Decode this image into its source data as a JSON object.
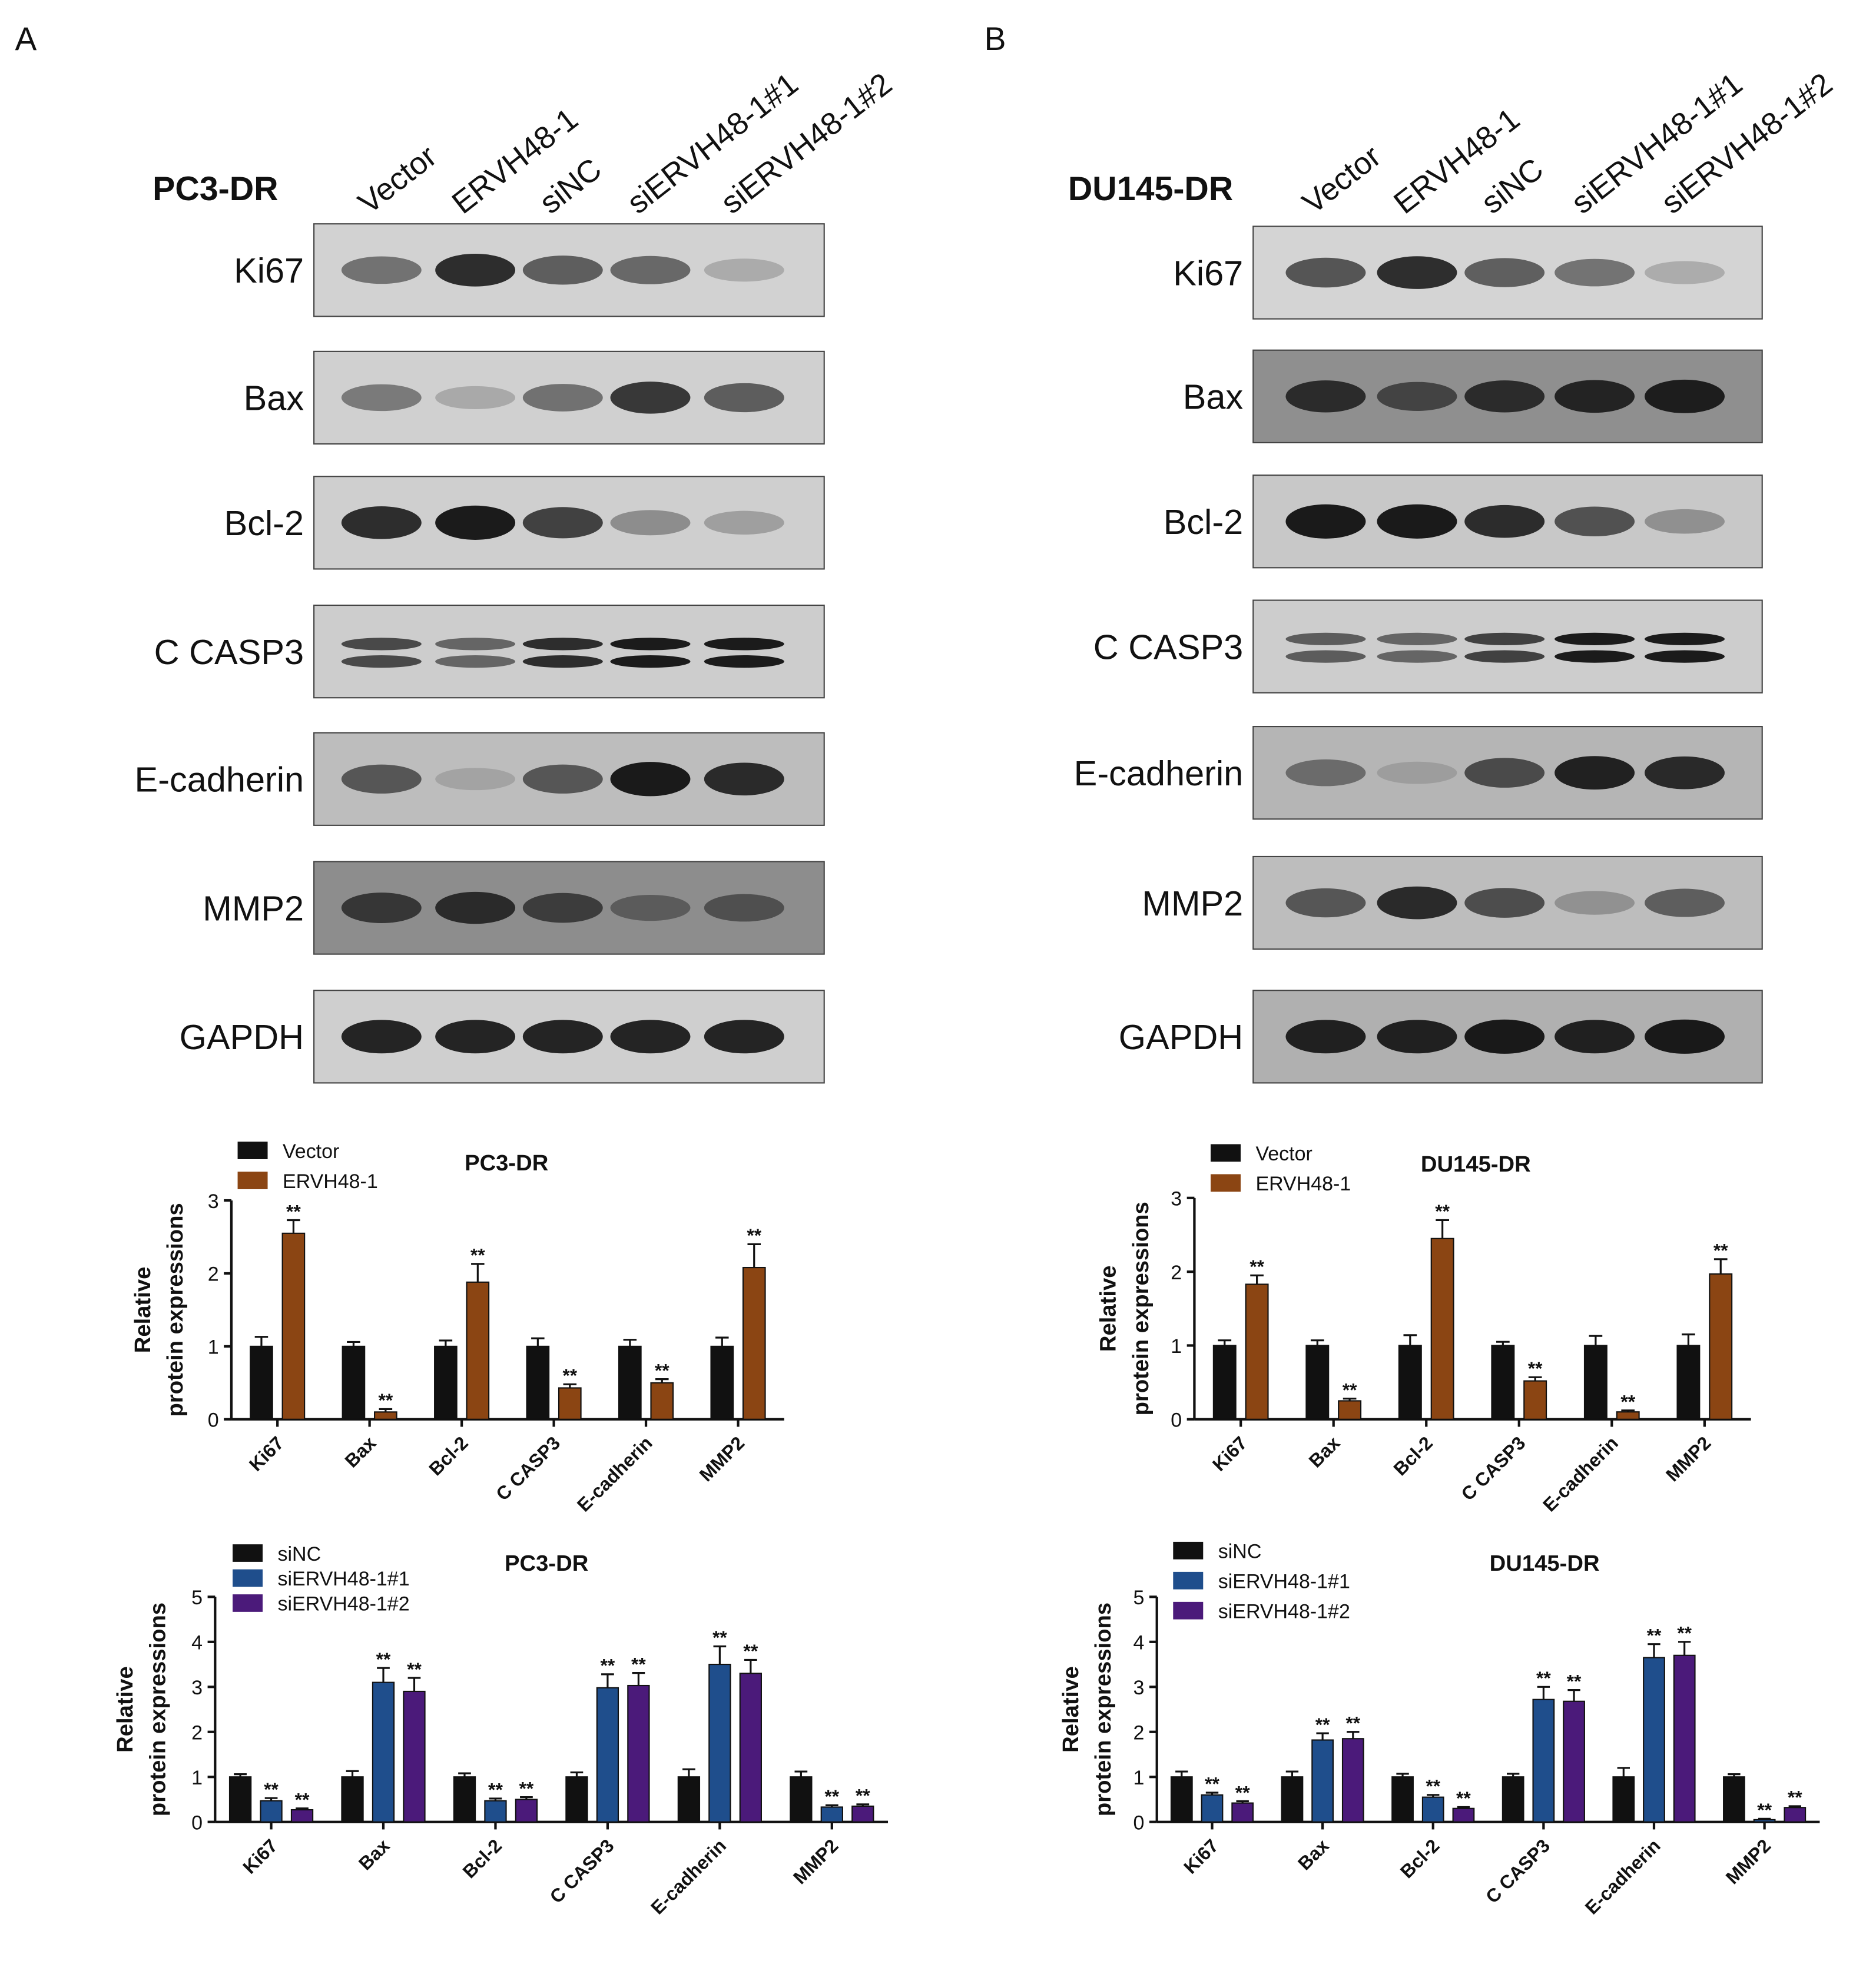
{
  "panels": [
    {
      "letter": "A",
      "cell_line": "PC3-DR",
      "lanes": [
        "Vector",
        "ERVH48-1",
        "siNC",
        "siERVH48-1#1",
        "siERVH48-1#2"
      ],
      "proteins": [
        "Ki67",
        "Bax",
        "Bcl-2",
        "C CASP3",
        "E-cadherin",
        "MMP2",
        "GAPDH"
      ]
    },
    {
      "letter": "B",
      "cell_line": "DU145-DR",
      "lanes": [
        "Vector",
        "ERVH48-1",
        "siNC",
        "siERVH48-1#1",
        "siERVH48-1#2"
      ],
      "proteins": [
        "Ki67",
        "Bax",
        "Bcl-2",
        "C CASP3",
        "E-cadherin",
        "MMP2",
        "GAPDH"
      ]
    }
  ],
  "chart_data": [
    {
      "type": "bar",
      "title": "PC3-DR",
      "y_label": [
        "Relative",
        "protein expressions"
      ],
      "categories": [
        "Ki67",
        "Bax",
        "Bcl-2",
        "C CASP3",
        "E-cadherin",
        "MMP2"
      ],
      "series": [
        {
          "name": "Vector",
          "color": "#111111",
          "values": [
            1,
            1,
            1,
            1,
            1,
            1
          ],
          "errors": [
            0.13,
            0.06,
            0.08,
            0.11,
            0.09,
            0.12
          ]
        },
        {
          "name": "ERVH48-1",
          "color": "#8b4513",
          "values": [
            2.55,
            0.1,
            1.88,
            0.43,
            0.5,
            2.08
          ],
          "errors": [
            0.18,
            0.04,
            0.25,
            0.05,
            0.05,
            0.32
          ],
          "significance": [
            "**",
            "**",
            "**",
            "**",
            "**",
            "**"
          ]
        }
      ],
      "ylim": [
        0,
        3
      ],
      "yticks": [
        0,
        1,
        2,
        3
      ]
    },
    {
      "type": "bar",
      "title": "DU145-DR",
      "y_label": [
        "Relative",
        "protein expressions"
      ],
      "categories": [
        "Ki67",
        "Bax",
        "Bcl-2",
        "C CASP3",
        "E-cadherin",
        "MMP2"
      ],
      "series": [
        {
          "name": "Vector",
          "color": "#111111",
          "values": [
            1,
            1,
            1,
            1,
            1,
            1
          ],
          "errors": [
            0.07,
            0.07,
            0.14,
            0.05,
            0.13,
            0.15
          ]
        },
        {
          "name": "ERVH48-1",
          "color": "#8b4513",
          "values": [
            1.83,
            0.25,
            2.45,
            0.52,
            0.1,
            1.97
          ],
          "errors": [
            0.12,
            0.03,
            0.25,
            0.05,
            0.02,
            0.2
          ],
          "significance": [
            "**",
            "**",
            "**",
            "**",
            "**",
            "**"
          ]
        }
      ],
      "ylim": [
        0,
        3
      ],
      "yticks": [
        0,
        1,
        2,
        3
      ]
    },
    {
      "type": "bar",
      "title": "PC3-DR",
      "y_label": [
        "Relative",
        "protein expressions"
      ],
      "categories": [
        "Ki67",
        "Bax",
        "Bcl-2",
        "C CASP3",
        "E-cadherin",
        "MMP2"
      ],
      "series": [
        {
          "name": "siNC",
          "color": "#111111",
          "values": [
            1,
            1,
            1,
            1,
            1,
            1
          ],
          "errors": [
            0.06,
            0.13,
            0.08,
            0.1,
            0.17,
            0.12
          ]
        },
        {
          "name": "siERVH48-1#1",
          "color": "#1f4e8c",
          "values": [
            0.47,
            3.1,
            0.47,
            2.98,
            3.5,
            0.33
          ],
          "errors": [
            0.06,
            0.32,
            0.05,
            0.3,
            0.4,
            0.04
          ],
          "significance": [
            "**",
            "**",
            "**",
            "**",
            "**",
            "**"
          ]
        },
        {
          "name": "siERVH48-1#2",
          "color": "#4b1a7a",
          "values": [
            0.27,
            2.9,
            0.5,
            3.03,
            3.3,
            0.35
          ],
          "errors": [
            0.03,
            0.3,
            0.05,
            0.28,
            0.3,
            0.04
          ],
          "significance": [
            "**",
            "**",
            "**",
            "**",
            "**",
            "**"
          ]
        }
      ],
      "ylim": [
        0,
        5
      ],
      "yticks": [
        0,
        1,
        2,
        3,
        4,
        5
      ]
    },
    {
      "type": "bar",
      "title": "DU145-DR",
      "y_label": [
        "Relative",
        "protein expressions"
      ],
      "categories": [
        "Ki67",
        "Bax",
        "Bcl-2",
        "C CASP3",
        "E-cadherin",
        "MMP2"
      ],
      "series": [
        {
          "name": "siNC",
          "color": "#111111",
          "values": [
            1,
            1,
            1,
            1,
            1,
            1
          ],
          "errors": [
            0.12,
            0.12,
            0.07,
            0.07,
            0.2,
            0.06
          ]
        },
        {
          "name": "siERVH48-1#1",
          "color": "#1f4e8c",
          "values": [
            0.6,
            1.82,
            0.55,
            2.72,
            3.65,
            0.05
          ],
          "errors": [
            0.05,
            0.15,
            0.05,
            0.28,
            0.3,
            0.02
          ],
          "significance": [
            "**",
            "**",
            "**",
            "**",
            "**",
            "**"
          ]
        },
        {
          "name": "siERVH48-1#2",
          "color": "#4b1a7a",
          "values": [
            0.42,
            1.85,
            0.3,
            2.68,
            3.7,
            0.32
          ],
          "errors": [
            0.04,
            0.15,
            0.03,
            0.25,
            0.3,
            0.03
          ],
          "significance": [
            "**",
            "**",
            "**",
            "**",
            "**",
            "**"
          ]
        }
      ],
      "ylim": [
        0,
        5
      ],
      "yticks": [
        0,
        1,
        2,
        3,
        4,
        5
      ]
    }
  ]
}
